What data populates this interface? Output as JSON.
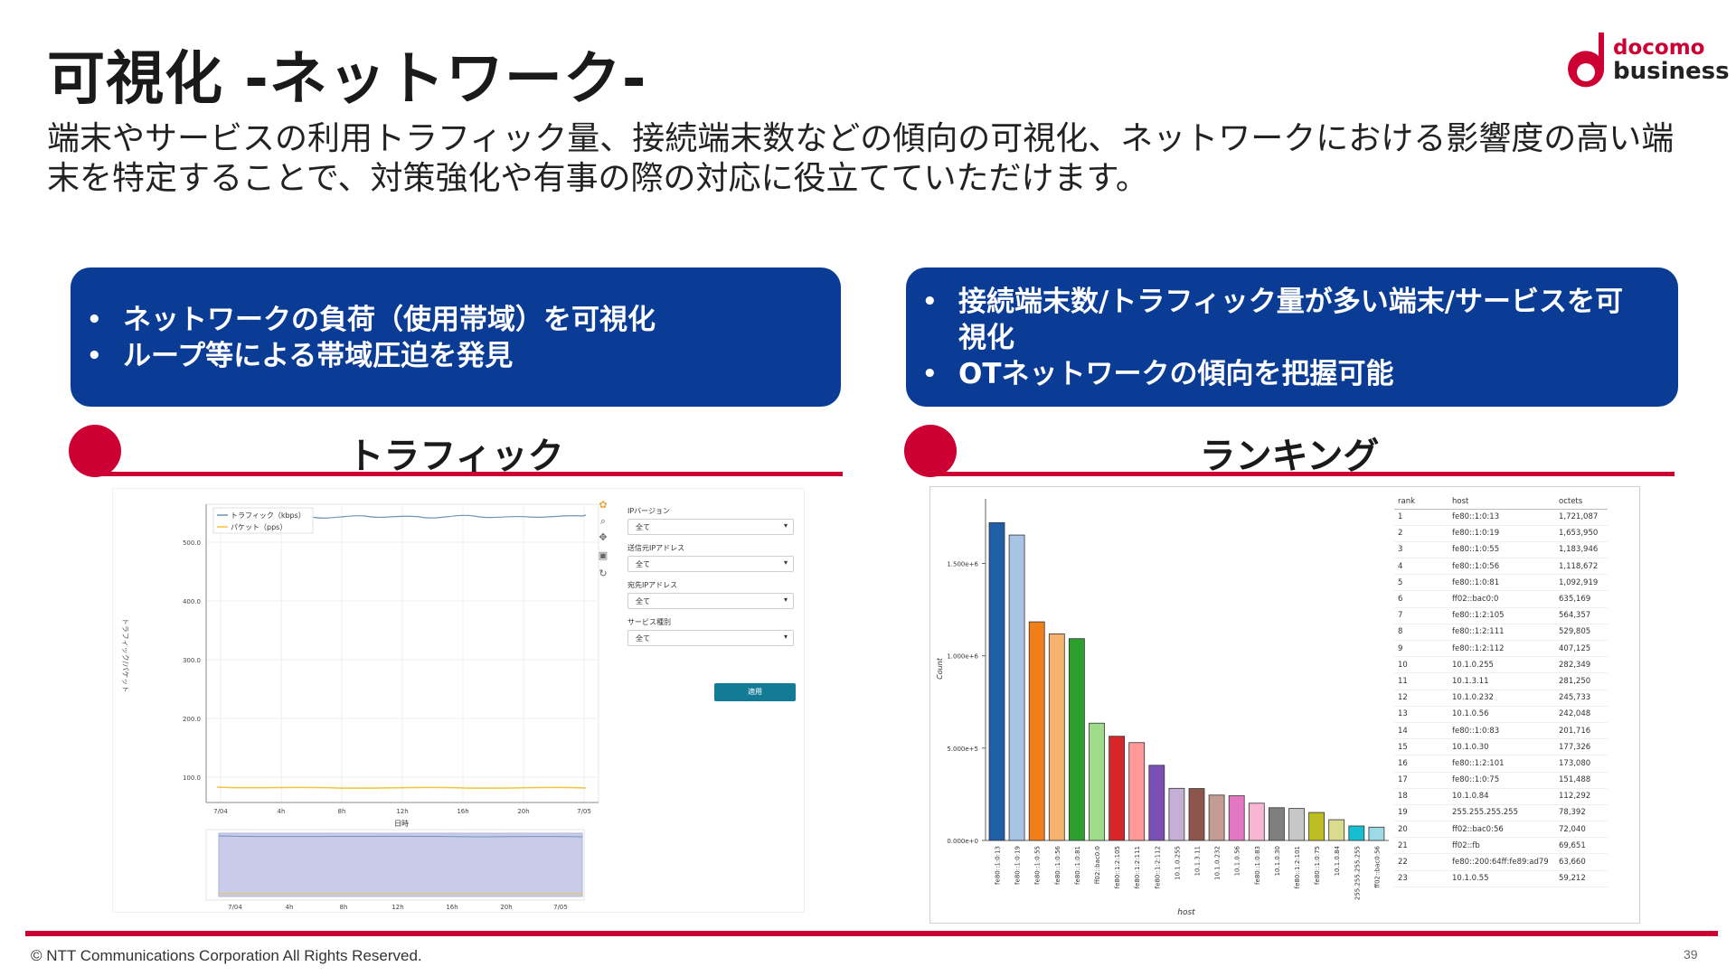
{
  "header": {
    "title": "可視化 -ネットワーク-",
    "logo_line1": "docomo",
    "logo_line2": "business",
    "description": "端末やサービスの利用トラフィック量、接続端末数などの傾向の可視化、ネットワークにおける影響度の高い端末を特定することで、対策強化や有事の際の対応に役立てていただけます。"
  },
  "left_box": {
    "bullets": [
      "ネットワークの負荷（使用帯域）を可視化",
      "ループ等による帯域圧迫を発見"
    ]
  },
  "right_box": {
    "bullets": [
      "接続端末数/トラフィック量が多い端末/サービスを可視化",
      "OTネットワークの傾向を把握可能"
    ]
  },
  "sections": {
    "traffic_title": "トラフィック",
    "ranking_title": "ランキング"
  },
  "traffic_panel": {
    "legend": [
      "トラフィック（kbps）",
      "パケット（pps）"
    ],
    "ylabel": "トラフィック/パケット",
    "xlabel": "日時",
    "yticks": [
      "500.0",
      "400.0",
      "300.0",
      "200.0",
      "100.0"
    ],
    "xticks": [
      "7/04",
      "4h",
      "8h",
      "12h",
      "16h",
      "20h",
      "7/05"
    ],
    "controls": [
      {
        "label": "IPバージョン",
        "value": "全て"
      },
      {
        "label": "送信元IPアドレス",
        "value": "全て"
      },
      {
        "label": "宛先IPアドレス",
        "value": "全て"
      },
      {
        "label": "サービス種別",
        "value": "全て"
      }
    ],
    "apply_label": "適用",
    "colors": {
      "traffic": "#6f93b8",
      "packet": "#f2c43d"
    }
  },
  "chart_data": {
    "type": "bar",
    "xlabel": "host",
    "ylabel": "Count",
    "ylim": [
      0,
      1850000
    ],
    "ytick_labels": [
      "0.000e+0",
      "5.000e+5",
      "1.000e+6",
      "1.500e+6"
    ],
    "categories": [
      "fe80::1:0:13",
      "fe80::1:0:19",
      "fe80::1:0:55",
      "fe80::1:0:56",
      "fe80::1:0:81",
      "ff02::bac0:0",
      "fe80::1:2:105",
      "fe80::1:2:111",
      "fe80::1:2:112",
      "10.1.0.255",
      "10.1.3.11",
      "10.1.0.232",
      "10.1.0.56",
      "fe80::1:0:83",
      "10.1.0.30",
      "fe80::1:2:101",
      "fe80::1:0:75",
      "10.1.0.84",
      "255.255.255.255",
      "ff02::bac0:56"
    ],
    "values": [
      1721087,
      1653950,
      1183946,
      1118672,
      1092919,
      635169,
      564357,
      529805,
      407125,
      282349,
      281250,
      245733,
      242048,
      201716,
      177326,
      173080,
      151488,
      112292,
      78392,
      72040
    ],
    "colors": [
      "#1f5fa8",
      "#a7c4e4",
      "#f07f1a",
      "#f7b26d",
      "#2ca02c",
      "#9edc8a",
      "#d62728",
      "#ff9896",
      "#7b4fb4",
      "#c5b0d5",
      "#8c564b",
      "#c49c94",
      "#e377c2",
      "#f7b6d2",
      "#7f7f7f",
      "#c7c7c7",
      "#bcbd22",
      "#dbdb8d",
      "#17becf",
      "#9edae5"
    ]
  },
  "ranking_table": {
    "headers": [
      "rank",
      "host",
      "octets"
    ],
    "rows": [
      [
        "1",
        "fe80::1:0:13",
        "1,721,087"
      ],
      [
        "2",
        "fe80::1:0:19",
        "1,653,950"
      ],
      [
        "3",
        "fe80::1:0:55",
        "1,183,946"
      ],
      [
        "4",
        "fe80::1:0:56",
        "1,118,672"
      ],
      [
        "5",
        "fe80::1:0:81",
        "1,092,919"
      ],
      [
        "6",
        "ff02::bac0:0",
        "635,169"
      ],
      [
        "7",
        "fe80::1:2:105",
        "564,357"
      ],
      [
        "8",
        "fe80::1:2:111",
        "529,805"
      ],
      [
        "9",
        "fe80::1:2:112",
        "407,125"
      ],
      [
        "10",
        "10.1.0.255",
        "282,349"
      ],
      [
        "11",
        "10.1.3.11",
        "281,250"
      ],
      [
        "12",
        "10.1.0.232",
        "245,733"
      ],
      [
        "13",
        "10.1.0.56",
        "242,048"
      ],
      [
        "14",
        "fe80::1:0:83",
        "201,716"
      ],
      [
        "15",
        "10.1.0.30",
        "177,326"
      ],
      [
        "16",
        "fe80::1:2:101",
        "173,080"
      ],
      [
        "17",
        "fe80::1:0:75",
        "151,488"
      ],
      [
        "18",
        "10.1.0.84",
        "112,292"
      ],
      [
        "19",
        "255.255.255.255",
        "78,392"
      ],
      [
        "20",
        "ff02::bac0:56",
        "72,040"
      ],
      [
        "21",
        "ff02::fb",
        "69,651"
      ],
      [
        "22",
        "fe80::200:64ff:fe89:ad79",
        "63,660"
      ],
      [
        "23",
        "10.1.0.55",
        "59,212"
      ]
    ]
  },
  "footer": {
    "copyright": "© NTT Communications Corporation All Rights Reserved.",
    "page": "39"
  }
}
